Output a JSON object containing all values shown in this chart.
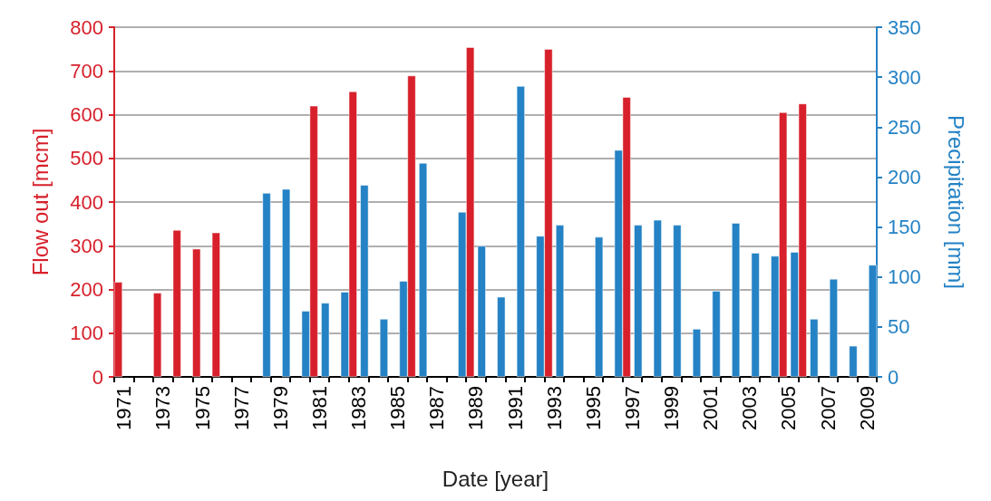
{
  "chart_data": {
    "type": "bar",
    "xlabel": "Date [year]",
    "ylabel": "Flow out [mcm]",
    "y2label": "Precipitation [mm]",
    "categories": [
      "1971",
      null,
      "1973",
      null,
      "1975",
      null,
      "1977",
      null,
      "1979",
      null,
      "1981",
      null,
      "1983",
      null,
      "1985",
      null,
      "1987",
      null,
      "1989",
      null,
      "1991",
      null,
      "1993",
      null,
      "1995",
      null,
      "1997",
      null,
      "1999",
      null,
      "2001",
      null,
      "2003",
      null,
      "2005",
      null,
      "2007",
      null,
      "2009"
    ],
    "series": [
      {
        "color": "#d7202b",
        "values": [
          217,
          null,
          192,
          336,
          293,
          330,
          null,
          null,
          null,
          null,
          620,
          null,
          653,
          null,
          null,
          689,
          null,
          null,
          754,
          null,
          null,
          null,
          750,
          null,
          null,
          null,
          640,
          null,
          null,
          null,
          null,
          null,
          null,
          null,
          605,
          625,
          null,
          null,
          null
        ]
      },
      {
        "color": "#2482c5",
        "axis": "y2",
        "values": [
          null,
          null,
          null,
          null,
          null,
          null,
          null,
          184,
          188,
          66,
          74,
          85,
          192,
          58,
          96,
          214,
          null,
          165,
          131,
          80,
          291,
          141,
          152,
          null,
          140,
          227,
          152,
          157,
          152,
          48,
          86,
          154,
          124,
          121,
          125,
          58,
          98,
          31,
          112
        ]
      }
    ],
    "ylim": [
      0,
      800
    ],
    "yticks": [
      0,
      100,
      200,
      300,
      400,
      500,
      600,
      700,
      800
    ],
    "y2lim": [
      0,
      350
    ],
    "y2ticks": [
      0,
      50,
      100,
      150,
      200,
      250,
      300,
      350
    ],
    "grid": "y"
  }
}
